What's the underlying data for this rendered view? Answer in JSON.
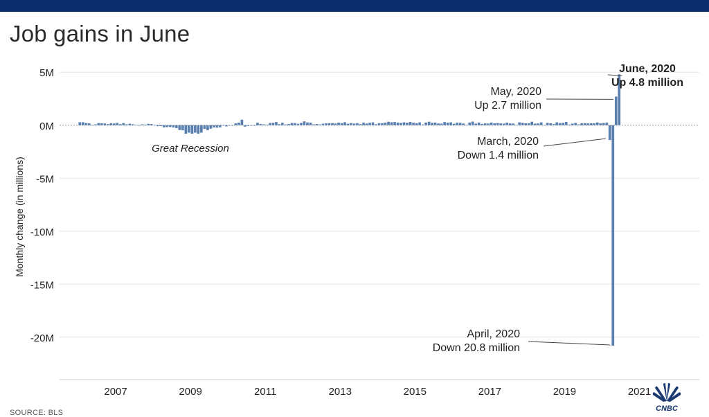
{
  "header": {
    "title": "Job gains in June"
  },
  "footer": {
    "source": "SOURCE: BLS",
    "logo_text": "CNBC"
  },
  "colors": {
    "bar": "#5b7fae",
    "topbar": "#0b2c6b",
    "grid": "#e6e6e6",
    "zero_line": "#9a9a9a"
  },
  "chart_data": {
    "type": "bar",
    "title": "Job gains in June",
    "ylabel": "Monthly change (in millions)",
    "xlabel": "",
    "ylim": [
      -24,
      5.8
    ],
    "xlim": [
      2005.5,
      2022.6
    ],
    "yticks": [
      {
        "value": 5,
        "label": "5M"
      },
      {
        "value": 0,
        "label": "0M"
      },
      {
        "value": -5,
        "label": "-5M"
      },
      {
        "value": -10,
        "label": "-10M"
      },
      {
        "value": -15,
        "label": "-15M"
      },
      {
        "value": -20,
        "label": "-20M"
      }
    ],
    "xticks": [
      {
        "value": 2007,
        "label": "2007"
      },
      {
        "value": 2009,
        "label": "2009"
      },
      {
        "value": 2011,
        "label": "2011"
      },
      {
        "value": 2013,
        "label": "2013"
      },
      {
        "value": 2015,
        "label": "2015"
      },
      {
        "value": 2017,
        "label": "2017"
      },
      {
        "value": 2019,
        "label": "2019"
      },
      {
        "value": 2021,
        "label": "2021"
      }
    ],
    "grid": true,
    "series": [
      {
        "start": "2006-01",
        "frequency": "monthly",
        "values": [
          0.28,
          0.28,
          0.2,
          0.18,
          0.02,
          0.08,
          0.2,
          0.18,
          0.16,
          0.1,
          0.19,
          0.16,
          0.22,
          0.1,
          0.2,
          0.08,
          0.14,
          0.09,
          0.03,
          -0.02,
          0.08,
          0.06,
          0.13,
          0.11,
          0.02,
          -0.09,
          -0.08,
          -0.21,
          -0.18,
          -0.17,
          -0.21,
          -0.27,
          -0.46,
          -0.48,
          -0.8,
          -0.7,
          -0.8,
          -0.7,
          -0.8,
          -0.7,
          -0.35,
          -0.47,
          -0.33,
          -0.21,
          -0.23,
          -0.2,
          0.01,
          -0.11,
          -0.01,
          -0.03,
          0.18,
          0.24,
          0.52,
          -0.13,
          -0.07,
          -0.04,
          -0.05,
          0.23,
          0.12,
          0.08,
          0.05,
          0.21,
          0.22,
          0.3,
          0.1,
          0.23,
          0.07,
          0.11,
          0.21,
          0.2,
          0.13,
          0.21,
          0.36,
          0.26,
          0.24,
          0.08,
          0.11,
          0.07,
          0.14,
          0.17,
          0.19,
          0.2,
          0.16,
          0.24,
          0.19,
          0.28,
          0.14,
          0.2,
          0.15,
          0.19,
          0.1,
          0.24,
          0.16,
          0.23,
          0.27,
          0.09,
          0.19,
          0.19,
          0.24,
          0.33,
          0.28,
          0.3,
          0.25,
          0.21,
          0.27,
          0.23,
          0.31,
          0.23,
          0.19,
          0.27,
          0.07,
          0.25,
          0.33,
          0.23,
          0.25,
          0.17,
          0.15,
          0.3,
          0.24,
          0.27,
          0.13,
          0.24,
          0.23,
          0.16,
          0.04,
          0.25,
          0.34,
          0.15,
          0.25,
          0.12,
          0.17,
          0.16,
          0.25,
          0.18,
          0.2,
          0.17,
          0.14,
          0.24,
          0.17,
          0.16,
          0.02,
          0.27,
          0.22,
          0.18,
          0.18,
          0.33,
          0.15,
          0.17,
          0.27,
          0.01,
          0.21,
          0.18,
          0.11,
          0.27,
          0.2,
          0.22,
          0.31,
          0.06,
          0.15,
          0.22,
          0.08,
          0.18,
          0.19,
          0.17,
          0.18,
          0.18,
          0.26,
          0.18,
          0.21,
          0.25,
          -1.4,
          -20.8,
          2.7,
          4.8
        ]
      }
    ],
    "annotations": [
      {
        "id": "june_2020",
        "line1": "June, 2020",
        "line2": "Up 4.8 million"
      },
      {
        "id": "may_2020",
        "line1": "May, 2020",
        "line2": "Up 2.7 million"
      },
      {
        "id": "march_2020",
        "line1": "March, 2020",
        "line2": "Down 1.4 million"
      },
      {
        "id": "april_2020",
        "line1": "April, 2020",
        "line2": "Down 20.8 million"
      },
      {
        "id": "great_recession",
        "line1": "Great Recession"
      }
    ]
  }
}
